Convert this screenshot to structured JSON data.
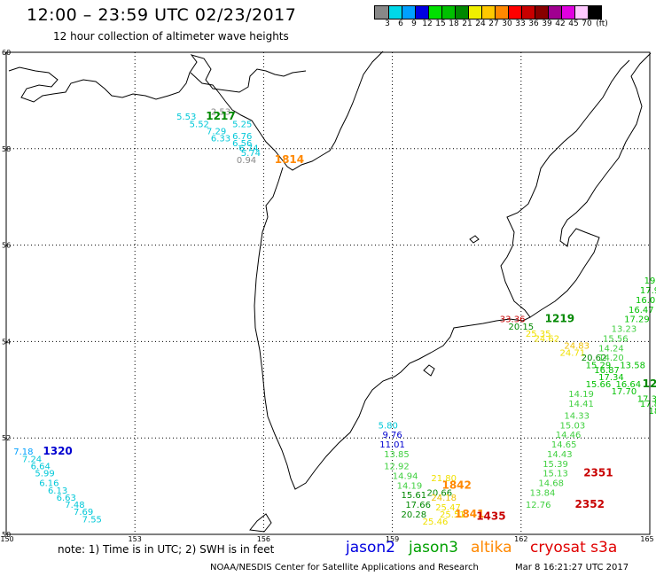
{
  "header": {
    "title": "12:00 – 23:59 UTC 02/23/2017",
    "subtitle": "12 hour collection of altimeter wave heights"
  },
  "color_scale": {
    "labels": [
      "3",
      "6",
      "9",
      "12",
      "15",
      "18",
      "21",
      "24",
      "27",
      "30",
      "33",
      "36",
      "39",
      "42",
      "45",
      "70"
    ],
    "unit": "(ft)",
    "colors": [
      "#888888",
      "#00d8e8",
      "#00a0ff",
      "#0000e0",
      "#00e000",
      "#00c000",
      "#008800",
      "#f0f000",
      "#ffc800",
      "#ff8800",
      "#ff0000",
      "#c80000",
      "#880000",
      "#a00090",
      "#e000e0",
      "#ffc8ff",
      "#000000"
    ]
  },
  "map": {
    "lat_labels": [
      "60",
      "58",
      "56",
      "54",
      "52",
      "50"
    ],
    "lon_labels": [
      "150",
      "153",
      "156",
      "159",
      "162",
      "165"
    ],
    "lat_range": [
      50,
      60
    ],
    "lon_range": [
      150,
      165
    ],
    "gridlines": "dotted",
    "coastline_color": "#000000"
  },
  "readings": [
    {
      "text": "2.53",
      "color": "#888888",
      "lat": 58.7,
      "lon": 155.0
    },
    {
      "text": "5.53",
      "color": "#00c8d8",
      "lat": 58.6,
      "lon": 154.2
    },
    {
      "text": "1217",
      "color": "#008800",
      "lat": 58.6,
      "lon": 155.0,
      "label": true
    },
    {
      "text": "5.52",
      "color": "#00c8d8",
      "lat": 58.45,
      "lon": 154.5
    },
    {
      "text": "5.25",
      "color": "#00c8d8",
      "lat": 58.45,
      "lon": 155.5
    },
    {
      "text": "7.29",
      "color": "#00c8d8",
      "lat": 58.3,
      "lon": 154.9
    },
    {
      "text": "6.76",
      "color": "#00c8d8",
      "lat": 58.2,
      "lon": 155.5
    },
    {
      "text": "6.33",
      "color": "#00c8d8",
      "lat": 58.15,
      "lon": 155.0
    },
    {
      "text": "6.56",
      "color": "#00c8d8",
      "lat": 58.05,
      "lon": 155.5
    },
    {
      "text": "6.74",
      "color": "#00c8d8",
      "lat": 57.95,
      "lon": 155.65
    },
    {
      "text": "5.74",
      "color": "#00c8d8",
      "lat": 57.85,
      "lon": 155.7
    },
    {
      "text": "0.94",
      "color": "#888888",
      "lat": 57.7,
      "lon": 155.6
    },
    {
      "text": "1814",
      "color": "#ff8800",
      "lat": 57.7,
      "lon": 156.6,
      "label": true
    },
    {
      "text": "33.36",
      "color": "#c80000",
      "lat": 54.4,
      "lon": 161.8
    },
    {
      "text": "1219",
      "color": "#008800",
      "lat": 54.4,
      "lon": 162.9,
      "label": true
    },
    {
      "text": "20.15",
      "color": "#008800",
      "lat": 54.25,
      "lon": 162.0
    },
    {
      "text": "25.35",
      "color": "#f0e000",
      "lat": 54.1,
      "lon": 162.4
    },
    {
      "text": "24.62",
      "color": "#f0e000",
      "lat": 54.0,
      "lon": 162.6
    },
    {
      "text": "24.83",
      "color": "#f0c000",
      "lat": 53.85,
      "lon": 163.3
    },
    {
      "text": "24.71",
      "color": "#f0e000",
      "lat": 53.7,
      "lon": 163.2
    },
    {
      "text": "20.62",
      "color": "#008800",
      "lat": 53.6,
      "lon": 163.7
    },
    {
      "text": "15.29",
      "color": "#00c000",
      "lat": 53.45,
      "lon": 163.8
    },
    {
      "text": "13.58",
      "color": "#00c000",
      "lat": 53.45,
      "lon": 164.6
    },
    {
      "text": "16.87",
      "color": "#00c000",
      "lat": 53.35,
      "lon": 164.0
    },
    {
      "text": "17.34",
      "color": "#00c000",
      "lat": 53.2,
      "lon": 164.1
    },
    {
      "text": "15.66",
      "color": "#00c000",
      "lat": 53.05,
      "lon": 163.8
    },
    {
      "text": "16.64",
      "color": "#00c000",
      "lat": 53.05,
      "lon": 164.5
    },
    {
      "text": "12",
      "color": "#008800",
      "lat": 53.05,
      "lon": 165.0,
      "label": true
    },
    {
      "text": "14.19",
      "color": "#40d040",
      "lat": 52.85,
      "lon": 163.4
    },
    {
      "text": "17.70",
      "color": "#00c000",
      "lat": 52.9,
      "lon": 164.4
    },
    {
      "text": "17.39",
      "color": "#00c000",
      "lat": 52.75,
      "lon": 165.0
    },
    {
      "text": "17.8",
      "color": "#00c000",
      "lat": 52.65,
      "lon": 165.0
    },
    {
      "text": "14.41",
      "color": "#40d040",
      "lat": 52.65,
      "lon": 163.4
    },
    {
      "text": "18",
      "color": "#00c000",
      "lat": 52.5,
      "lon": 165.1
    },
    {
      "text": "14.33",
      "color": "#40d040",
      "lat": 52.4,
      "lon": 163.3
    },
    {
      "text": "15.03",
      "color": "#40d040",
      "lat": 52.2,
      "lon": 163.2
    },
    {
      "text": "14.46",
      "color": "#40d040",
      "lat": 52.0,
      "lon": 163.1
    },
    {
      "text": "14.65",
      "color": "#40d040",
      "lat": 51.8,
      "lon": 163.0
    },
    {
      "text": "14.43",
      "color": "#40d040",
      "lat": 51.6,
      "lon": 162.9
    },
    {
      "text": "15.39",
      "color": "#40d040",
      "lat": 51.4,
      "lon": 162.8
    },
    {
      "text": "15.13",
      "color": "#40d040",
      "lat": 51.2,
      "lon": 162.8
    },
    {
      "text": "2351",
      "color": "#c80000",
      "lat": 51.2,
      "lon": 163.8,
      "label": true
    },
    {
      "text": "14.68",
      "color": "#40d040",
      "lat": 51.0,
      "lon": 162.7
    },
    {
      "text": "13.84",
      "color": "#40d040",
      "lat": 50.8,
      "lon": 162.5
    },
    {
      "text": "12.76",
      "color": "#40d040",
      "lat": 50.55,
      "lon": 162.4
    },
    {
      "text": "2352",
      "color": "#c80000",
      "lat": 50.55,
      "lon": 163.6,
      "label": true
    },
    {
      "text": "19",
      "color": "#00c000",
      "lat": 55.2,
      "lon": 165.0
    },
    {
      "text": "17.9",
      "color": "#00c000",
      "lat": 55.0,
      "lon": 165.0
    },
    {
      "text": "16.0",
      "color": "#00c000",
      "lat": 54.8,
      "lon": 164.9
    },
    {
      "text": "16.47",
      "color": "#00c000",
      "lat": 54.6,
      "lon": 164.8
    },
    {
      "text": "17.29",
      "color": "#00c000",
      "lat": 54.4,
      "lon": 164.7
    },
    {
      "text": "13.23",
      "color": "#40d040",
      "lat": 54.2,
      "lon": 164.4
    },
    {
      "text": "15.56",
      "color": "#40d040",
      "lat": 54.0,
      "lon": 164.2
    },
    {
      "text": "14.24",
      "color": "#40d040",
      "lat": 53.8,
      "lon": 164.1
    },
    {
      "text": "14.20",
      "color": "#40d040",
      "lat": 53.6,
      "lon": 164.1
    },
    {
      "text": "5.80",
      "color": "#00c8d8",
      "lat": 52.2,
      "lon": 158.9
    },
    {
      "text": "9.76",
      "color": "#0000d0",
      "lat": 52.0,
      "lon": 159.0
    },
    {
      "text": "11.01",
      "color": "#0000d0",
      "lat": 51.8,
      "lon": 159.0
    },
    {
      "text": "13.85",
      "color": "#40d040",
      "lat": 51.6,
      "lon": 159.1
    },
    {
      "text": "12.92",
      "color": "#40d040",
      "lat": 51.35,
      "lon": 159.1
    },
    {
      "text": "14.94",
      "color": "#40d040",
      "lat": 51.15,
      "lon": 159.3
    },
    {
      "text": "21.80",
      "color": "#f0e000",
      "lat": 51.1,
      "lon": 160.2
    },
    {
      "text": "14.19",
      "color": "#40d040",
      "lat": 50.95,
      "lon": 159.4
    },
    {
      "text": "1842",
      "color": "#ff8800",
      "lat": 50.95,
      "lon": 160.5,
      "label": true
    },
    {
      "text": "20.66",
      "color": "#008800",
      "lat": 50.8,
      "lon": 160.1
    },
    {
      "text": "15.61",
      "color": "#008800",
      "lat": 50.75,
      "lon": 159.5
    },
    {
      "text": "24.18",
      "color": "#f0c000",
      "lat": 50.7,
      "lon": 160.2
    },
    {
      "text": "17.66",
      "color": "#008800",
      "lat": 50.55,
      "lon": 159.6
    },
    {
      "text": "25.47",
      "color": "#f0e000",
      "lat": 50.5,
      "lon": 160.3
    },
    {
      "text": "20.28",
      "color": "#008800",
      "lat": 50.35,
      "lon": 159.5
    },
    {
      "text": "25.51",
      "color": "#f0e000",
      "lat": 50.35,
      "lon": 160.4
    },
    {
      "text": "1841",
      "color": "#ff8800",
      "lat": 50.35,
      "lon": 160.8,
      "label": true
    },
    {
      "text": "1435",
      "color": "#c80000",
      "lat": 50.3,
      "lon": 161.3,
      "label": true
    },
    {
      "text": "25.46",
      "color": "#f0e000",
      "lat": 50.2,
      "lon": 160.0
    },
    {
      "text": "7.18",
      "color": "#00a0ff",
      "lat": 51.65,
      "lon": 150.4
    },
    {
      "text": "1320",
      "color": "#0000d0",
      "lat": 51.65,
      "lon": 151.2,
      "label": true
    },
    {
      "text": "7.24",
      "color": "#00c8d8",
      "lat": 51.5,
      "lon": 150.6
    },
    {
      "text": "6.64",
      "color": "#00c8d8",
      "lat": 51.35,
      "lon": 150.8
    },
    {
      "text": "5.99",
      "color": "#00c8d8",
      "lat": 51.2,
      "lon": 150.9
    },
    {
      "text": "6.16",
      "color": "#00c8d8",
      "lat": 51.0,
      "lon": 151.0
    },
    {
      "text": "6.13",
      "color": "#00c8d8",
      "lat": 50.85,
      "lon": 151.2
    },
    {
      "text": "6.63",
      "color": "#00c8d8",
      "lat": 50.7,
      "lon": 151.4
    },
    {
      "text": "7.48",
      "color": "#00c8d8",
      "lat": 50.55,
      "lon": 151.6
    },
    {
      "text": "7.69",
      "color": "#00c8d8",
      "lat": 50.4,
      "lon": 151.8
    },
    {
      "text": "7.55",
      "color": "#00c8d8",
      "lat": 50.25,
      "lon": 152.0
    }
  ],
  "footer": {
    "note": "note: 1) Time is in UTC; 2) SWH is in feet",
    "legend": [
      {
        "name": "jason2",
        "color": "#0000e0"
      },
      {
        "name": "jason3",
        "color": "#00a000"
      },
      {
        "name": "altika",
        "color": "#ff8800"
      },
      {
        "name": "cryosat s3a",
        "color": "#e00000"
      }
    ],
    "credit": "NOAA/NESDIS Center for Satellite Applications and Research",
    "timestamp": "Mar 8 16:21:27 UTC 2017"
  }
}
